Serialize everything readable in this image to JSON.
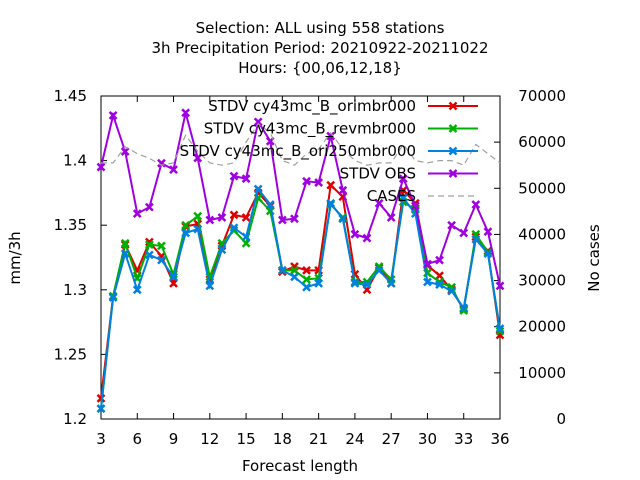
{
  "chart_data": {
    "type": "line",
    "title_lines": [
      "Selection: ALL using   558 stations",
      "3h Precipitation   Period: 20210922-20211022",
      "Hours: {00,06,12,18}"
    ],
    "xlabel": "Forecast length",
    "ylabel": "mm/3h",
    "y2label": "No cases",
    "xlim": [
      3,
      36
    ],
    "ylim": [
      1.2,
      1.45
    ],
    "y2lim": [
      0,
      70000
    ],
    "x_ticks": [
      3,
      6,
      9,
      12,
      15,
      18,
      21,
      24,
      27,
      30,
      33,
      36
    ],
    "y_ticks": [
      "1.2",
      "1.25",
      "1.3",
      "1.35",
      "1.4",
      "1.45"
    ],
    "y2_ticks": [
      "0",
      "10000",
      "20000",
      "30000",
      "40000",
      "50000",
      "60000",
      "70000"
    ],
    "legend_position": "top-right",
    "grid": false,
    "x": [
      3,
      4,
      5,
      6,
      7,
      8,
      9,
      10,
      11,
      12,
      13,
      14,
      15,
      16,
      17,
      18,
      19,
      20,
      21,
      22,
      23,
      24,
      25,
      26,
      27,
      28,
      29,
      30,
      31,
      32,
      33,
      34,
      35,
      36
    ],
    "series": [
      {
        "name": "STDV cy43mc_B_orimbr000",
        "color": "#e00000",
        "marker": "x",
        "axis": "y",
        "values": [
          1.216,
          1.295,
          1.335,
          1.315,
          1.337,
          1.326,
          1.305,
          1.349,
          1.351,
          1.308,
          1.334,
          1.358,
          1.356,
          1.375,
          1.365,
          1.314,
          1.318,
          1.315,
          1.315,
          1.381,
          1.372,
          1.312,
          1.3,
          1.317,
          1.305,
          1.377,
          1.367,
          1.319,
          1.311,
          1.3,
          1.285,
          1.341,
          1.33,
          1.265
        ]
      },
      {
        "name": "STDV cy43mc_B_revmbr000",
        "color": "#00b000",
        "marker": "x",
        "axis": "y",
        "values": [
          1.208,
          1.295,
          1.336,
          1.309,
          1.335,
          1.334,
          1.312,
          1.35,
          1.357,
          1.31,
          1.336,
          1.346,
          1.336,
          1.371,
          1.361,
          1.315,
          1.315,
          1.308,
          1.309,
          1.366,
          1.356,
          1.306,
          1.306,
          1.318,
          1.308,
          1.368,
          1.362,
          1.313,
          1.306,
          1.302,
          1.284,
          1.343,
          1.329,
          1.268
        ]
      },
      {
        "name": "STDV cy43mc_B_ori250mbr000",
        "color": "#0080e0",
        "marker": "x",
        "axis": "y",
        "values": [
          1.208,
          1.294,
          1.328,
          1.3,
          1.327,
          1.323,
          1.31,
          1.344,
          1.347,
          1.303,
          1.331,
          1.348,
          1.341,
          1.378,
          1.366,
          1.315,
          1.31,
          1.302,
          1.305,
          1.367,
          1.355,
          1.305,
          1.304,
          1.315,
          1.305,
          1.371,
          1.359,
          1.306,
          1.304,
          1.299,
          1.286,
          1.339,
          1.328,
          1.27
        ]
      },
      {
        "name": "STDV OBS",
        "color": "#a000e0",
        "marker": "x",
        "axis": "y",
        "values": [
          1.395,
          1.435,
          1.407,
          1.359,
          1.364,
          1.398,
          1.393,
          1.437,
          1.402,
          1.354,
          1.356,
          1.388,
          1.386,
          1.43,
          1.415,
          1.354,
          1.355,
          1.384,
          1.383,
          1.419,
          1.377,
          1.343,
          1.34,
          1.367,
          1.356,
          1.386,
          1.365,
          1.32,
          1.323,
          1.35,
          1.344,
          1.366,
          1.345,
          1.303
        ]
      },
      {
        "name": "CASES",
        "color": "#a0a0a0",
        "marker": "none",
        "dashed": true,
        "axis": "y2",
        "values": [
          55500,
          55500,
          59000,
          57500,
          56500,
          55000,
          55500,
          61500,
          58000,
          55500,
          55000,
          55500,
          60000,
          64000,
          62000,
          56000,
          55000,
          57500,
          58500,
          62000,
          58500,
          56000,
          55000,
          55500,
          55500,
          59500,
          56000,
          55500,
          56000,
          56000,
          55000,
          59500,
          57500,
          55500
        ]
      }
    ]
  }
}
